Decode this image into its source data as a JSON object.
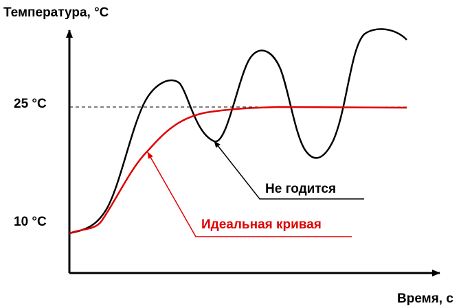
{
  "axes": {
    "y_title": "Температура, °C",
    "x_title": "Время, с",
    "y_labels": [
      "25 °C",
      "10 °C"
    ]
  },
  "annotations": {
    "bad": "Не годится",
    "ideal": "Идеальная кривая"
  }
}
